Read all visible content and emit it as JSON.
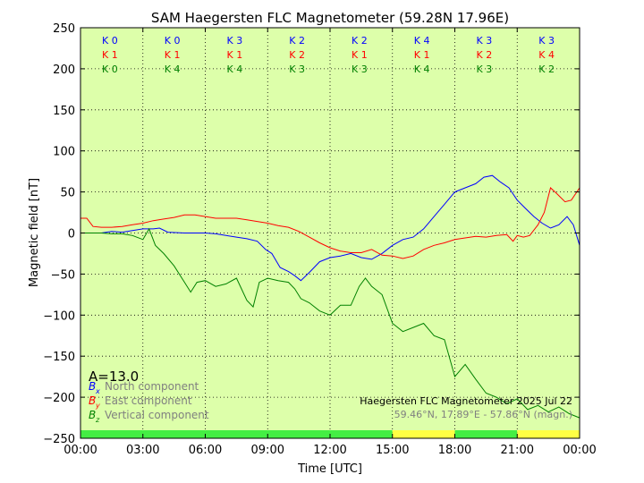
{
  "chart_data": {
    "type": "line",
    "title": "SAM Haegersten FLC Magnetometer (59.28N 17.96E)",
    "xlabel": "Time [UTC]",
    "ylabel": "Magnetic field [nT]",
    "x_unit": "hours UTC",
    "xlim": [
      0,
      24
    ],
    "ylim": [
      -250,
      250
    ],
    "x_ticks": [
      0,
      3,
      6,
      9,
      12,
      15,
      18,
      21,
      24
    ],
    "x_tick_labels": [
      "00:00",
      "03:00",
      "06:00",
      "09:00",
      "12:00",
      "15:00",
      "18:00",
      "21:00",
      "00:00"
    ],
    "y_ticks": [
      250,
      200,
      150,
      100,
      50,
      0,
      -50,
      -100,
      -150,
      -200,
      -250
    ],
    "y_tick_labels": [
      "250",
      "200",
      "150",
      "100",
      "50",
      "0",
      "−50",
      "−100",
      "−150",
      "−200",
      "−250"
    ],
    "grid": true,
    "plot_background": "#ddffaa",
    "colors": {
      "x": "#0000ff",
      "y": "#ff0000",
      "z": "#008000"
    },
    "k_index": {
      "intervals": [
        [
          0,
          3
        ],
        [
          3,
          6
        ],
        [
          6,
          9
        ],
        [
          9,
          12
        ],
        [
          12,
          15
        ],
        [
          15,
          18
        ],
        [
          18,
          21
        ],
        [
          21,
          24
        ]
      ],
      "rows": [
        {
          "component": "x",
          "color": "#0000ff",
          "labels": [
            "K 0",
            "K 0",
            "K 3",
            "K 2",
            "K 2",
            "K 4",
            "K 3",
            "K 3"
          ]
        },
        {
          "component": "y",
          "color": "#ff0000",
          "labels": [
            "K 1",
            "K 1",
            "K 1",
            "K 2",
            "K 1",
            "K 1",
            "K 2",
            "K 4"
          ]
        },
        {
          "component": "z",
          "color": "#008000",
          "labels": [
            "K 0",
            "K 4",
            "K 4",
            "K 3",
            "K 3",
            "K 4",
            "K 3",
            "K 2"
          ]
        }
      ]
    },
    "activity_bar": [
      {
        "start": 0,
        "end": 15,
        "color": "#44ee44"
      },
      {
        "start": 15,
        "end": 18,
        "color": "#ffff44"
      },
      {
        "start": 18,
        "end": 21,
        "color": "#44ee44"
      },
      {
        "start": 21,
        "end": 24,
        "color": "#ffff44"
      }
    ],
    "a_index": "A=13.0",
    "legend": [
      {
        "symbol": "B",
        "sub": "x",
        "text": "North component",
        "color": "#0000ff"
      },
      {
        "symbol": "B",
        "sub": "y",
        "text": "East component",
        "color": "#ff0000"
      },
      {
        "symbol": "B",
        "sub": "z",
        "text": "Vertical component",
        "color": "#008000"
      }
    ],
    "info_line1": "Haegersten FLC Magnetometer 2025 Jul 22",
    "info_line2": "59.46°N, 17.89°E - 57.86°N (magn.)",
    "series": [
      {
        "name": "North component",
        "color": "#0000ff",
        "points": [
          [
            0,
            0
          ],
          [
            0.5,
            0
          ],
          [
            1,
            0
          ],
          [
            1.5,
            2
          ],
          [
            2,
            1
          ],
          [
            2.5,
            3
          ],
          [
            3,
            5
          ],
          [
            3.5,
            5
          ],
          [
            3.8,
            6
          ],
          [
            4.2,
            1
          ],
          [
            5,
            0
          ],
          [
            6,
            0
          ],
          [
            6.5,
            -1
          ],
          [
            7,
            -3
          ],
          [
            7.5,
            -5
          ],
          [
            8,
            -7
          ],
          [
            8.5,
            -10
          ],
          [
            8.9,
            -20
          ],
          [
            9.2,
            -25
          ],
          [
            9.6,
            -42
          ],
          [
            10,
            -47
          ],
          [
            10.3,
            -52
          ],
          [
            10.6,
            -58
          ],
          [
            11,
            -48
          ],
          [
            11.5,
            -35
          ],
          [
            12,
            -30
          ],
          [
            12.5,
            -28
          ],
          [
            13,
            -25
          ],
          [
            13.5,
            -30
          ],
          [
            14,
            -32
          ],
          [
            14.5,
            -25
          ],
          [
            15,
            -15
          ],
          [
            15.5,
            -8
          ],
          [
            16,
            -5
          ],
          [
            16.5,
            5
          ],
          [
            17,
            20
          ],
          [
            17.5,
            35
          ],
          [
            18,
            50
          ],
          [
            18.5,
            55
          ],
          [
            19,
            60
          ],
          [
            19.4,
            68
          ],
          [
            19.8,
            70
          ],
          [
            20.2,
            62
          ],
          [
            20.6,
            55
          ],
          [
            21,
            40
          ],
          [
            21.4,
            30
          ],
          [
            21.8,
            20
          ],
          [
            22.2,
            12
          ],
          [
            22.6,
            6
          ],
          [
            23,
            10
          ],
          [
            23.4,
            20
          ],
          [
            23.7,
            10
          ],
          [
            24,
            -15
          ]
        ]
      },
      {
        "name": "East component",
        "color": "#ff0000",
        "points": [
          [
            0,
            18
          ],
          [
            0.3,
            18
          ],
          [
            0.6,
            8
          ],
          [
            1,
            7
          ],
          [
            1.5,
            7
          ],
          [
            2,
            8
          ],
          [
            2.5,
            10
          ],
          [
            3,
            12
          ],
          [
            3.5,
            15
          ],
          [
            4,
            17
          ],
          [
            4.5,
            19
          ],
          [
            5,
            22
          ],
          [
            5.5,
            22
          ],
          [
            6,
            20
          ],
          [
            6.5,
            18
          ],
          [
            7,
            18
          ],
          [
            7.5,
            18
          ],
          [
            8,
            16
          ],
          [
            8.5,
            14
          ],
          [
            9,
            12
          ],
          [
            9.5,
            9
          ],
          [
            10,
            7
          ],
          [
            10.5,
            2
          ],
          [
            11,
            -5
          ],
          [
            11.5,
            -12
          ],
          [
            12,
            -18
          ],
          [
            12.5,
            -22
          ],
          [
            13,
            -24
          ],
          [
            13.5,
            -24
          ],
          [
            14,
            -20
          ],
          [
            14.5,
            -27
          ],
          [
            15,
            -28
          ],
          [
            15.5,
            -31
          ],
          [
            16,
            -28
          ],
          [
            16.5,
            -20
          ],
          [
            17,
            -15
          ],
          [
            17.5,
            -12
          ],
          [
            18,
            -8
          ],
          [
            18.5,
            -6
          ],
          [
            19,
            -4
          ],
          [
            19.5,
            -5
          ],
          [
            20,
            -3
          ],
          [
            20.5,
            -2
          ],
          [
            20.8,
            -10
          ],
          [
            21,
            -3
          ],
          [
            21.3,
            -5
          ],
          [
            21.6,
            -3
          ],
          [
            22,
            10
          ],
          [
            22.3,
            25
          ],
          [
            22.6,
            55
          ],
          [
            22.9,
            48
          ],
          [
            23.3,
            38
          ],
          [
            23.6,
            40
          ],
          [
            24,
            55
          ]
        ]
      },
      {
        "name": "Vertical component",
        "color": "#008000",
        "points": [
          [
            0,
            0
          ],
          [
            0.5,
            0
          ],
          [
            1,
            0
          ],
          [
            1.5,
            -1
          ],
          [
            2,
            -1
          ],
          [
            2.5,
            -3
          ],
          [
            3,
            -8
          ],
          [
            3.3,
            5
          ],
          [
            3.6,
            -15
          ],
          [
            4,
            -25
          ],
          [
            4.5,
            -40
          ],
          [
            5,
            -60
          ],
          [
            5.3,
            -72
          ],
          [
            5.6,
            -60
          ],
          [
            6,
            -58
          ],
          [
            6.5,
            -65
          ],
          [
            7,
            -62
          ],
          [
            7.5,
            -55
          ],
          [
            8,
            -82
          ],
          [
            8.3,
            -90
          ],
          [
            8.6,
            -60
          ],
          [
            9,
            -55
          ],
          [
            9.5,
            -58
          ],
          [
            10,
            -60
          ],
          [
            10.3,
            -68
          ],
          [
            10.6,
            -80
          ],
          [
            11,
            -85
          ],
          [
            11.5,
            -95
          ],
          [
            12,
            -100
          ],
          [
            12.5,
            -88
          ],
          [
            13,
            -88
          ],
          [
            13.4,
            -65
          ],
          [
            13.7,
            -55
          ],
          [
            14,
            -65
          ],
          [
            14.5,
            -75
          ],
          [
            15,
            -110
          ],
          [
            15.5,
            -120
          ],
          [
            16,
            -115
          ],
          [
            16.5,
            -110
          ],
          [
            17,
            -125
          ],
          [
            17.5,
            -130
          ],
          [
            18,
            -175
          ],
          [
            18.5,
            -160
          ],
          [
            19,
            -178
          ],
          [
            19.5,
            -195
          ],
          [
            20,
            -200
          ],
          [
            20.5,
            -208
          ],
          [
            21,
            -202
          ],
          [
            21.5,
            -215
          ],
          [
            22,
            -210
          ],
          [
            22.5,
            -218
          ],
          [
            23,
            -212
          ],
          [
            23.5,
            -220
          ],
          [
            24,
            -225
          ]
        ]
      }
    ]
  }
}
